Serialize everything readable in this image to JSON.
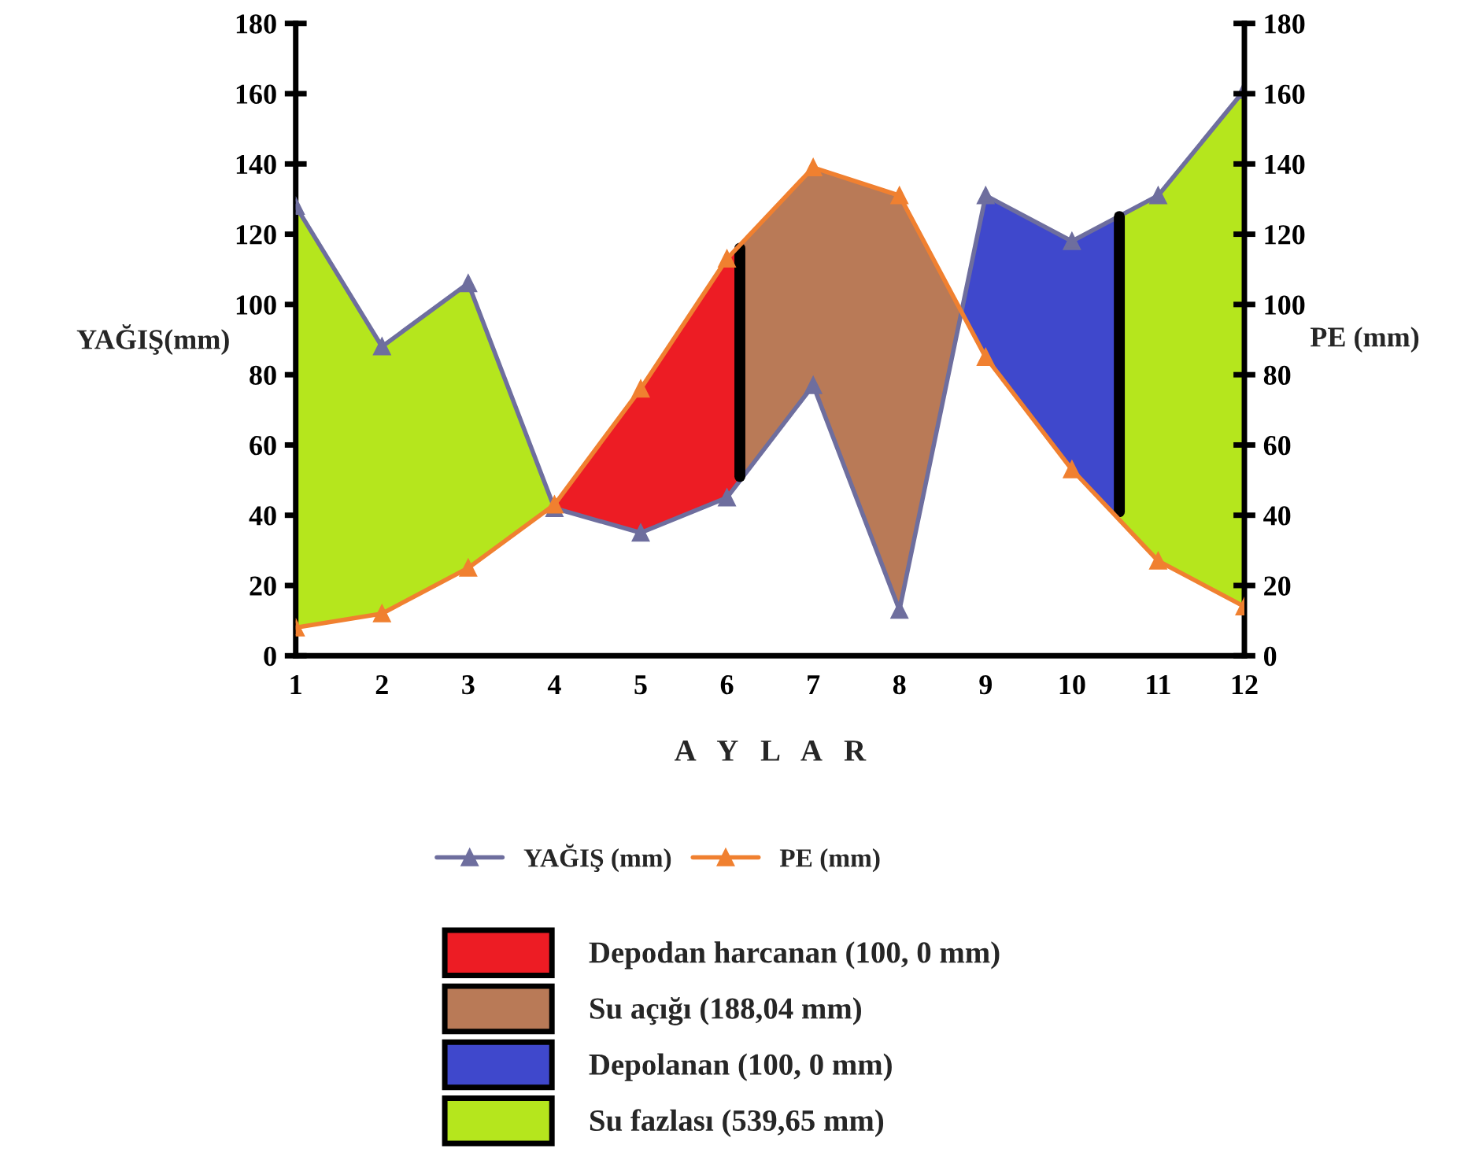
{
  "chart_data": {
    "type": "line",
    "ylabel": "YAĞIŞ(mm)",
    "y2label": "PE (mm)",
    "xlabel": "A   Y   L   A   R",
    "x": [
      1,
      2,
      3,
      4,
      5,
      6,
      7,
      8,
      9,
      10,
      11,
      12
    ],
    "xlim": [
      1,
      12
    ],
    "xticks": [
      1,
      2,
      3,
      4,
      5,
      6,
      7,
      8,
      9,
      10,
      11,
      12
    ],
    "ylim": [
      0,
      180
    ],
    "yticks": [
      0,
      20,
      40,
      60,
      80,
      100,
      120,
      140,
      160,
      180
    ],
    "y2lim": [
      0,
      180
    ],
    "y2ticks": [
      0,
      20,
      40,
      60,
      80,
      100,
      120,
      140,
      160,
      180
    ],
    "marker": "triangle",
    "grid": false,
    "legend": "bottom",
    "series": [
      {
        "type": "area",
        "name": "Depodan harcanan (100, 0 mm)",
        "color": "#ed1c24",
        "marker": "none",
        "x": [
          4,
          5,
          6,
          6.15
        ],
        "values": [
          null,
          null,
          null,
          null
        ],
        "upper": [
          43,
          76,
          113,
          117
        ],
        "lower": [
          42,
          35,
          45,
          50
        ]
      },
      {
        "type": "area",
        "name": "Su açığı (188,04 mm)",
        "color": "#b97a57",
        "marker": "none",
        "x": [
          6.15,
          7,
          8,
          8.72
        ],
        "values": [
          null,
          null,
          null,
          null
        ],
        "upper": [
          117,
          139,
          131,
          98
        ],
        "lower": [
          50,
          77,
          13,
          98
        ]
      },
      {
        "type": "area",
        "name": "Depolanan (100, 0 mm)",
        "color": "#3f48cc",
        "marker": "none",
        "x": [
          8.72,
          9,
          10,
          10.55
        ],
        "values": [
          null,
          null,
          null,
          null
        ],
        "upper": [
          98,
          131,
          118,
          125
        ],
        "lower": [
          98,
          85,
          53,
          39
        ]
      },
      {
        "type": "area",
        "name": "Su fazlası (539,65 mm)",
        "color": "#b5e61d",
        "marker": "none",
        "x": [
          1,
          2,
          3,
          4,
          null,
          10.55,
          11,
          12
        ],
        "values": [
          null,
          null,
          null,
          null,
          null,
          null,
          null,
          null
        ],
        "upper": [
          128,
          88,
          106,
          42,
          null,
          125,
          131,
          161
        ],
        "lower": [
          8,
          12,
          25,
          43,
          null,
          39,
          27,
          14
        ]
      },
      {
        "name": "YAĞIŞ (mm)",
        "color": "#6e6e9e",
        "values": [
          128,
          88,
          106,
          42,
          35,
          45,
          77,
          13,
          131,
          118,
          131,
          161
        ]
      },
      {
        "name": "PE (mm)",
        "color": "#f08030",
        "axis": "y2",
        "values": [
          8,
          12,
          25,
          43,
          76,
          113,
          139,
          131,
          85,
          53,
          27,
          14
        ]
      },
      {
        "color": "#000000",
        "marker": "none",
        "x": [
          6.15,
          6.15
        ],
        "values": [
          51,
          116
        ]
      },
      {
        "color": "#000000",
        "marker": "none",
        "x": [
          10.55,
          10.55
        ],
        "values": [
          41,
          125
        ]
      }
    ]
  }
}
